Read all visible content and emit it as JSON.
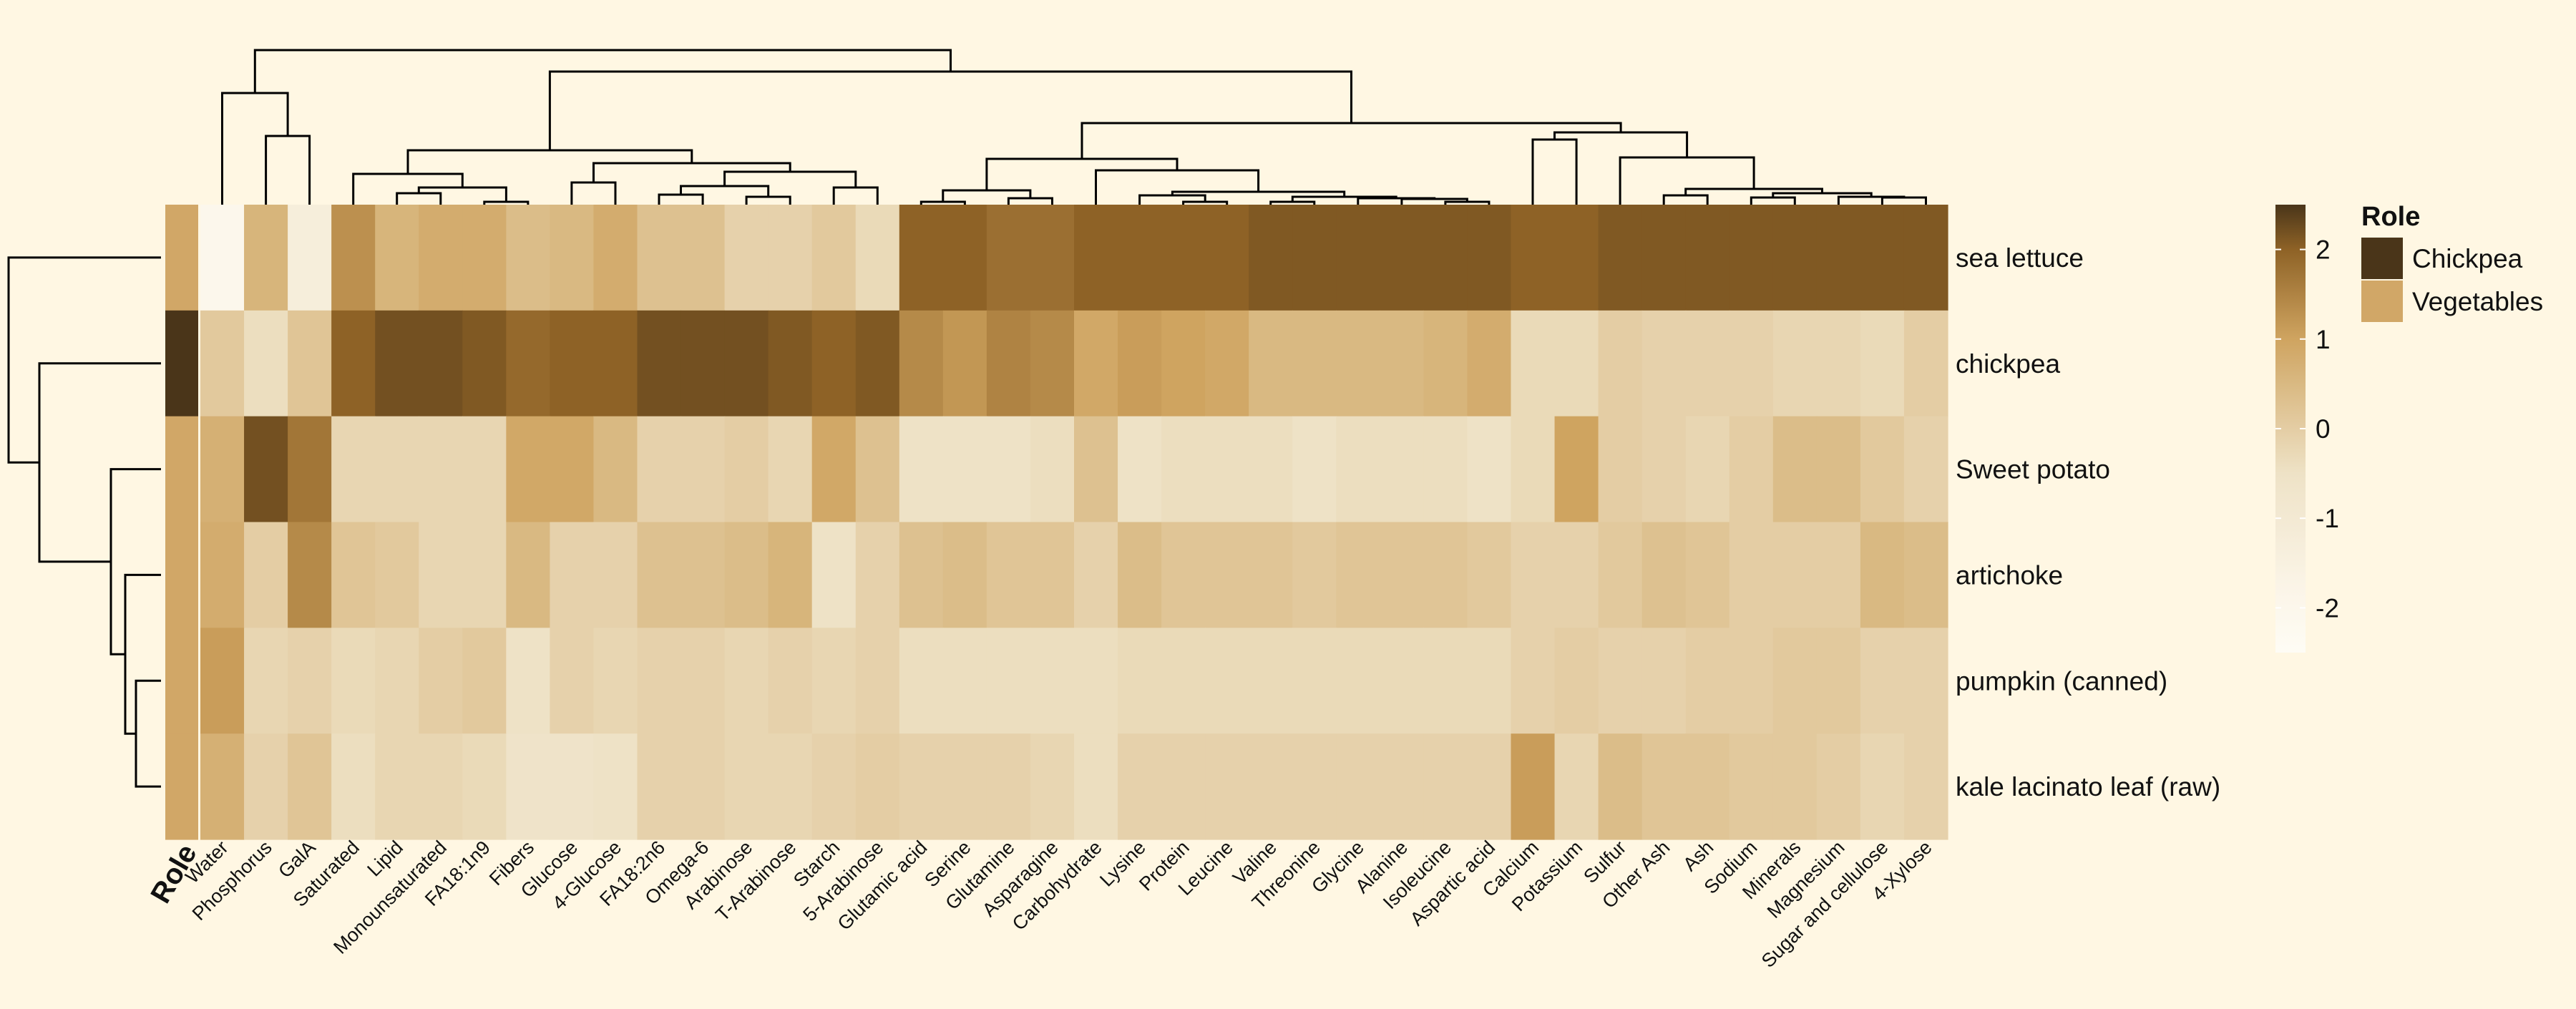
{
  "chart_data": {
    "type": "heatmap",
    "rows": [
      "sea lettuce",
      "chickpea",
      "Sweet potato",
      "artichoke",
      "pumpkin (canned)",
      "kale lacinato leaf (raw)"
    ],
    "columns": [
      "Water",
      "Phosphorus",
      "GalA",
      "Saturated",
      "Lipid",
      "Monounsaturated",
      "FA18:1n9",
      "Fibers",
      "Glucose",
      "4-Glucose",
      "FA18:2n6",
      "Omega-6",
      "Arabinose",
      "T-Arabinose",
      "Starch",
      "5-Arabinose",
      "Glutamic acid",
      "Serine",
      "Glutamine",
      "Asparagine",
      "Carbohydrate",
      "Lysine",
      "Protein",
      "Leucine",
      "Valine",
      "Threonine",
      "Glycine",
      "Alanine",
      "Isoleucine",
      "Aspartic acid",
      "Calcium",
      "Potassium",
      "Sulfur",
      "Other Ash",
      "Ash",
      "Sodium",
      "Minerals",
      "Magnesium",
      "Sugar and cellulose",
      "4-Xylose"
    ],
    "values": [
      [
        -2.0,
        0.6,
        -1.3,
        1.3,
        0.6,
        0.8,
        0.8,
        0.4,
        0.5,
        0.8,
        0.3,
        0.3,
        -0.1,
        -0.1,
        0.1,
        -0.3,
        2.0,
        2.0,
        1.8,
        1.8,
        2.0,
        2.0,
        2.0,
        2.0,
        2.1,
        2.1,
        2.1,
        2.1,
        2.1,
        2.1,
        2.0,
        2.0,
        2.1,
        2.1,
        2.1,
        2.1,
        2.1,
        2.1,
        2.1,
        2.1
      ],
      [
        0.1,
        -0.4,
        0.2,
        2.0,
        2.2,
        2.2,
        2.1,
        1.9,
        2.0,
        2.0,
        2.2,
        2.2,
        2.2,
        2.1,
        2.0,
        2.1,
        1.4,
        1.2,
        1.5,
        1.4,
        0.9,
        1.1,
        1.0,
        0.9,
        0.5,
        0.5,
        0.5,
        0.5,
        0.6,
        0.8,
        -0.3,
        -0.3,
        0.0,
        -0.1,
        -0.1,
        -0.1,
        -0.2,
        -0.2,
        -0.3,
        0.0
      ],
      [
        0.7,
        2.2,
        1.7,
        -0.2,
        -0.2,
        -0.2,
        -0.2,
        0.9,
        0.9,
        0.5,
        -0.1,
        -0.1,
        0.0,
        -0.2,
        0.9,
        0.3,
        -0.5,
        -0.5,
        -0.5,
        -0.4,
        0.3,
        -0.5,
        -0.4,
        -0.4,
        -0.4,
        -0.5,
        -0.4,
        -0.4,
        -0.4,
        -0.5,
        -0.3,
        1.0,
        0.0,
        -0.1,
        -0.2,
        0.0,
        0.4,
        0.4,
        0.1,
        -0.1
      ],
      [
        0.8,
        0.0,
        1.4,
        0.2,
        0.1,
        -0.2,
        -0.2,
        0.5,
        -0.1,
        -0.1,
        0.3,
        0.3,
        0.4,
        0.6,
        -0.5,
        -0.1,
        0.3,
        0.4,
        0.2,
        0.2,
        -0.1,
        0.4,
        0.2,
        0.2,
        0.2,
        0.1,
        0.2,
        0.2,
        0.2,
        0.1,
        -0.1,
        -0.1,
        0.1,
        0.3,
        0.2,
        0.0,
        0.0,
        0.0,
        0.5,
        0.4
      ],
      [
        1.1,
        -0.2,
        -0.1,
        -0.3,
        -0.2,
        0.0,
        0.1,
        -0.5,
        -0.1,
        -0.2,
        -0.1,
        -0.1,
        -0.2,
        -0.1,
        -0.2,
        -0.1,
        -0.4,
        -0.4,
        -0.4,
        -0.4,
        -0.4,
        -0.3,
        -0.3,
        -0.3,
        -0.3,
        -0.3,
        -0.3,
        -0.3,
        -0.3,
        -0.3,
        -0.1,
        0.0,
        -0.1,
        -0.1,
        0.0,
        0.0,
        0.1,
        0.1,
        -0.1,
        -0.1
      ],
      [
        0.7,
        -0.1,
        0.2,
        -0.4,
        -0.2,
        -0.2,
        -0.3,
        -0.6,
        -0.6,
        -0.5,
        -0.1,
        -0.1,
        -0.2,
        -0.2,
        -0.1,
        0.0,
        -0.1,
        -0.1,
        -0.1,
        -0.2,
        -0.4,
        -0.1,
        -0.1,
        -0.1,
        -0.1,
        -0.1,
        -0.1,
        -0.1,
        -0.1,
        -0.1,
        1.1,
        -0.2,
        0.4,
        0.2,
        0.2,
        0.1,
        0.1,
        0.0,
        -0.2,
        -0.1
      ]
    ],
    "row_roles": [
      "Vegetables",
      "Chickpea",
      "Vegetables",
      "Vegetables",
      "Vegetables",
      "Vegetables"
    ],
    "annotation_title": "Role",
    "colorbar": {
      "range": [
        -2.5,
        2.5
      ],
      "ticks": [
        2,
        1,
        0,
        -1,
        -2
      ]
    },
    "colors": {
      "stops": [
        "#fefcf5",
        "#fbf5e8",
        "#eee2c6",
        "#cfa460",
        "#8e6226",
        "#4a3519"
      ],
      "stop_values": [
        -2.5,
        -1.8,
        -0.5,
        1.0,
        2.0,
        2.5
      ],
      "Chickpea": "#4a3519",
      "Vegetables": "#d1a767",
      "background": "#fff7e3"
    },
    "legend": {
      "title": "Role",
      "items": [
        {
          "label": "Chickpea",
          "color": "#4a3519"
        },
        {
          "label": "Vegetables",
          "color": "#d1a767"
        }
      ]
    }
  }
}
